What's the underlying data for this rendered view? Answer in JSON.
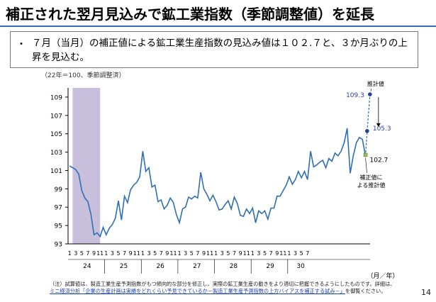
{
  "title": "補正された翌月見込みで鉱工業指数（季節調整値）を延長",
  "bullet": "・",
  "bullet_text": "７月（当月）の補正値による鉱工業生産指数の見込み値は１０２.７と、３か月ぶりの上昇を見込む。",
  "unit_note": "（22年＝100、季節調整済）",
  "footnote": {
    "line1": "（注）試算値は、製造工業生産予測指数がもつ傾向的な部分を修正し、実際の鉱工業生産の動きをより適切に把握できるようにしたものです。詳細は、",
    "link": "ミニ経済分析「企業の生産計画は実績をどれくらい予見できているか－製造工業生産予測指数の上方バイアスを補正する試み－」",
    "tail": "を御覧ください。"
  },
  "page_number": "14",
  "colors": {
    "line": "#2f6fb3",
    "shade": "#c8bfdc",
    "forecast_point": "#1f3f9a",
    "corrected_point": "#8fbf5a",
    "callout_text": "#2f3fb0"
  },
  "chart_data": {
    "type": "line",
    "ylim": [
      93,
      110
    ],
    "yticks": [
      "93",
      "95",
      "97",
      "99",
      "101",
      "103",
      "105",
      "107",
      "109"
    ],
    "x_unit_label": "（月／年）",
    "month_ticks": [
      "1",
      "3",
      "5",
      "7",
      "9",
      "11"
    ],
    "final_year_month_ticks": [
      "1",
      "3",
      "5",
      "7"
    ],
    "years": [
      "24",
      "25",
      "26",
      "27",
      "28",
      "29",
      "30"
    ],
    "shaded_period": {
      "start_index": 1,
      "end_index": 10
    },
    "series": [
      {
        "values": [
          101.5,
          101.3,
          101.1,
          100.6,
          98.8,
          98.0,
          97.6,
          96.2,
          94.0,
          94.2,
          93.8,
          94.8,
          94.0,
          94.7,
          95.1,
          95.8,
          97.7,
          95.6,
          98.2,
          97.5,
          98.9,
          99.4,
          99.7,
          100.3,
          103.1,
          100.9,
          101.3,
          99.2,
          99.4,
          97.6,
          97.8,
          96.8,
          97.2,
          98.0,
          97.5,
          96.2,
          95.3,
          96.8,
          97.0,
          98.1,
          97.9,
          98.2,
          98.0,
          100.8,
          99.0,
          98.4,
          97.7,
          98.3,
          97.6,
          96.7,
          96.8,
          97.3,
          97.7,
          96.8,
          98.1,
          97.4,
          96.1,
          96.0,
          96.8,
          96.3,
          96.9,
          95.3,
          96.6,
          96.3,
          96.6,
          95.7,
          96.9,
          96.9,
          98.2,
          98.2,
          98.8,
          99.4,
          100.3,
          99.5,
          100.0,
          100.9,
          100.2,
          100.9,
          100.0,
          103.1,
          101.4,
          101.6,
          101.9,
          102.1,
          101.3,
          102.3,
          102.0,
          102.9,
          102.6,
          103.1,
          104.0,
          105.6,
          100.7,
          102.6,
          104.0,
          104.6,
          104.4,
          102.6
        ]
      }
    ],
    "forecast_point": {
      "value": 105.3,
      "label": "105.3"
    },
    "forecast_top_point": {
      "value": 109.3,
      "label": "109.3"
    },
    "corrected_point": {
      "value": 102.7,
      "label": "102.7"
    },
    "annotations": {
      "forecast_label": "推計値",
      "corrected_label_line1": "補正値に",
      "corrected_label_line2": "よる推計値"
    }
  }
}
